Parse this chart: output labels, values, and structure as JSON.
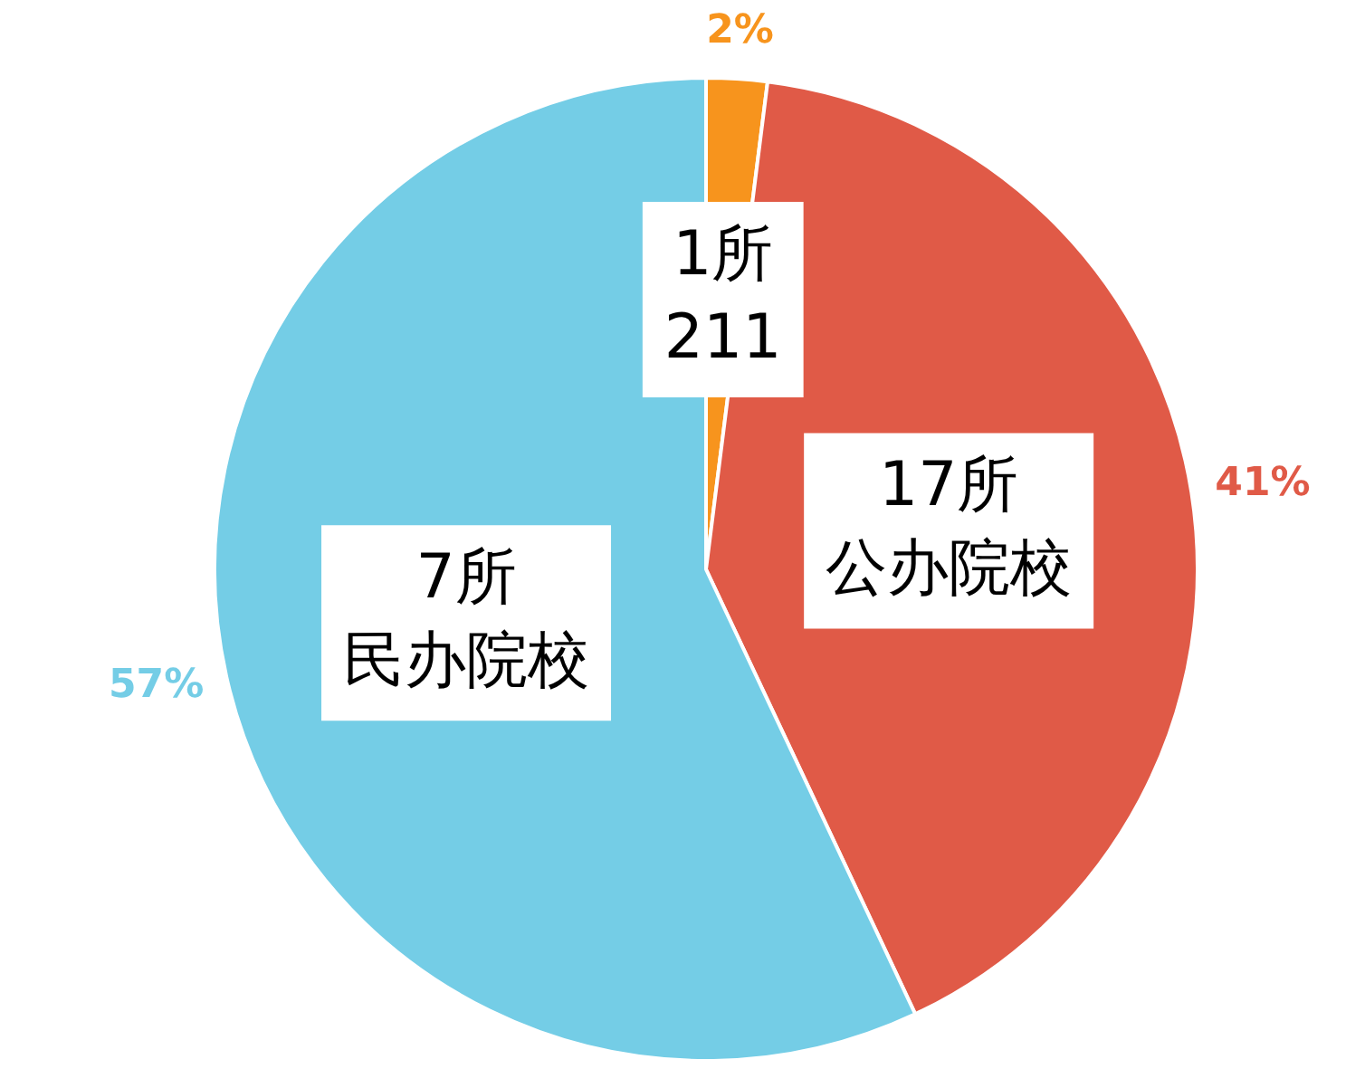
{
  "chart_data": {
    "type": "pie",
    "categories": [
      "1所211",
      "17所公办院校",
      "7所民办院校"
    ],
    "values": [
      2,
      41,
      57
    ],
    "colors": [
      "#f7941d",
      "#e05a47",
      "#74cde6"
    ],
    "value_labels": [
      "2%",
      "41%",
      "57%"
    ],
    "legend": false
  }
}
